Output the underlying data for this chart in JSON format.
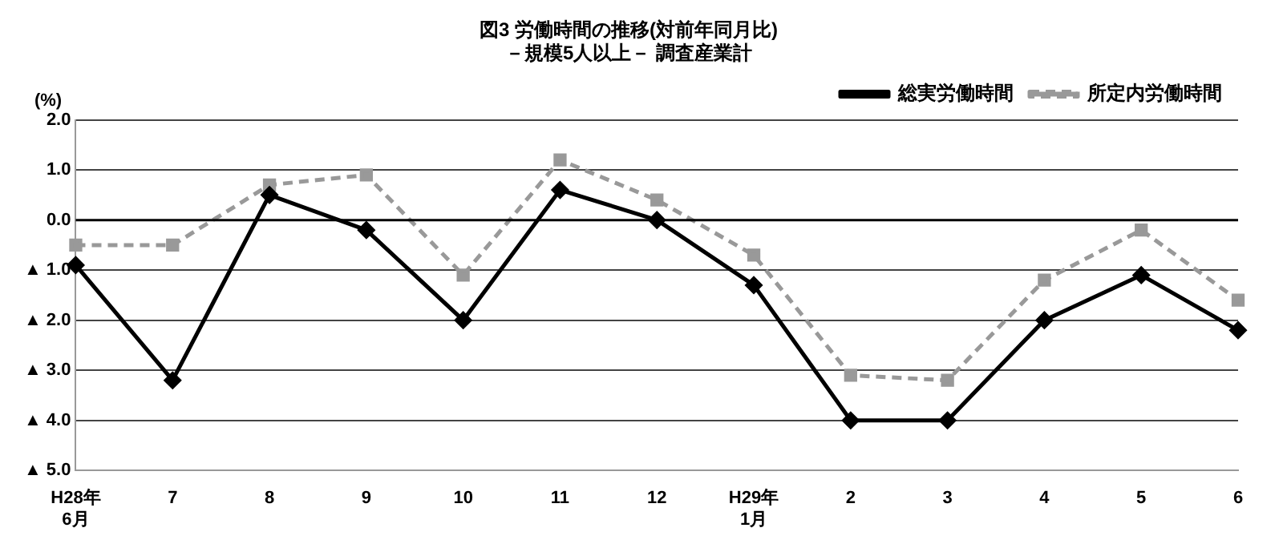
{
  "chart_data": {
    "type": "line",
    "title": "図3 労働時間の推移(対前年同月比)",
    "subtitle": "－規模5人以上－ 調査産業計",
    "ylabel": "(%)",
    "categories": [
      "H28年\n6月",
      "7",
      "8",
      "9",
      "10",
      "11",
      "12",
      "H29年\n1月",
      "2",
      "3",
      "4",
      "5",
      "6"
    ],
    "series": [
      {
        "name": "総実労働時間",
        "color": "#000000",
        "marker": "diamond",
        "line_style": "solid",
        "values": [
          -0.9,
          -3.2,
          0.5,
          -0.2,
          -2.0,
          0.6,
          0.0,
          -1.3,
          -4.0,
          -4.0,
          -2.0,
          -1.1,
          -2.2
        ]
      },
      {
        "name": "所定内労働時間",
        "color": "#999999",
        "marker": "square",
        "line_style": "dashed",
        "values": [
          -0.5,
          -0.5,
          0.7,
          0.9,
          -1.1,
          1.2,
          0.4,
          -0.7,
          -3.1,
          -3.2,
          -1.2,
          -0.2,
          -1.6
        ]
      }
    ],
    "ylim": [
      -5,
      2
    ],
    "yticks": [
      {
        "value": 2,
        "label": "2.0"
      },
      {
        "value": 1,
        "label": "1.0"
      },
      {
        "value": 0,
        "label": "0.0"
      },
      {
        "value": -1,
        "label": "▲ 1.0"
      },
      {
        "value": -2,
        "label": "▲ 2.0"
      },
      {
        "value": -3,
        "label": "▲ 3.0"
      },
      {
        "value": -4,
        "label": "▲ 4.0"
      },
      {
        "value": -5,
        "label": "▲ 5.0"
      }
    ],
    "ref_lines": [
      {
        "axis": "y",
        "value": 0,
        "color": "#000000"
      }
    ],
    "grid": "y",
    "legend": "top right"
  }
}
